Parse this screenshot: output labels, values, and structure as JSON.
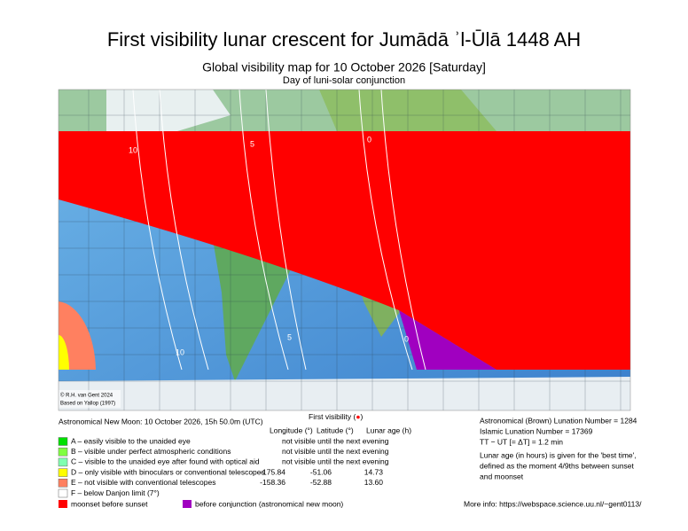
{
  "header": {
    "title": "First visibility lunar crescent for Jumādā ʾl-Ūlā 1448 AH",
    "subtitle": "Global visibility map for 10 October 2026 [Saturday]",
    "note": "Day of luni-solar conjunction"
  },
  "map": {
    "contour_labels": [
      "10",
      "5",
      "0",
      "10",
      "5",
      "0"
    ],
    "credit": "© R.H. van Gent 2024",
    "source": "Based on Yallop (1997)"
  },
  "info": {
    "new_moon": "Astronomical New Moon: 10 October 2026, 15h 50.0m (UTC)",
    "first_visibility": "First visibility (",
    "first_visibility_end": ")",
    "headers": [
      "Longitude (°)",
      "Latitude (°)",
      "Lunar age (h)"
    ],
    "legend": [
      {
        "label": "A – easily visible to the unaided eye",
        "color": "#00e000",
        "visibility": "not visible until the next evening"
      },
      {
        "label": "B – visible under perfect atmospheric conditions",
        "color": "#80ff40",
        "visibility": "not visible until the next evening"
      },
      {
        "label": "C – visible to the unaided eye after found with optical aid",
        "color": "#80ffb0",
        "visibility": "not visible until the next evening"
      },
      {
        "label": "D – only visible with binoculars or conventional telescopes",
        "color": "#ffff00",
        "longitude": "-175.84",
        "latitude": "-51.06",
        "age": "14.73"
      },
      {
        "label": "E – not visible with conventional telescopes",
        "color": "#ff8060",
        "longitude": "-158.36",
        "latitude": "-52.88",
        "age": "13.60"
      },
      {
        "label": "F – below Danjon limit (7°)",
        "color": "#ffffff"
      }
    ],
    "moonset": {
      "label": "moonset before sunset",
      "color": "#ff0000"
    },
    "conjunction": {
      "label": "before conjunction (astronomical new moon)",
      "color": "#a000c0"
    },
    "lunation_brown": "Astronomical (Brown) Lunation Number = 1284",
    "lunation_islamic": "Islamic Lunation Number = 17369",
    "delta_t": "TT − UT [= ΔT] = 1.2 min",
    "age_note": [
      "Lunar age (in hours) is given for the 'best time',",
      "defined as the moment 4/9ths between sunset",
      "and moonset"
    ],
    "more_info": "More info: https://webspace.science.uu.nl/~gent0113/"
  }
}
